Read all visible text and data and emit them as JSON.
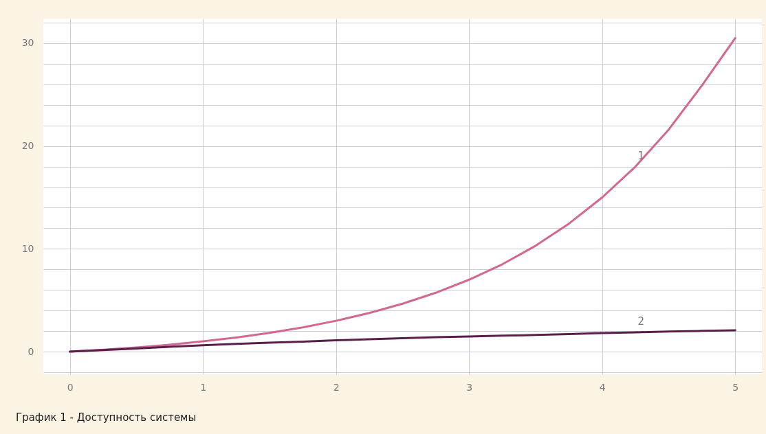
{
  "chart_data": {
    "type": "line",
    "title": "График 1 - Доступность системы",
    "x": [
      0,
      0.25,
      0.5,
      0.75,
      1,
      1.25,
      1.5,
      1.75,
      2,
      2.25,
      2.5,
      2.75,
      3,
      3.25,
      3.5,
      3.75,
      4,
      4.25,
      4.5,
      4.75,
      5
    ],
    "series": [
      {
        "name": "1",
        "color": "#d4678f",
        "values": [
          0,
          0.19,
          0.41,
          0.68,
          1,
          1.38,
          1.83,
          2.36,
          3,
          3.76,
          4.66,
          5.73,
          7,
          8.5,
          10.3,
          12.45,
          15,
          18.0,
          21.6,
          25.9,
          30.5
        ]
      },
      {
        "name": "2",
        "color": "#5a1f48",
        "values": [
          0,
          0.15,
          0.3,
          0.47,
          0.63,
          0.75,
          0.87,
          0.98,
          1.1,
          1.2,
          1.3,
          1.4,
          1.47,
          1.55,
          1.62,
          1.7,
          1.8,
          1.88,
          1.95,
          2.02,
          2.07
        ]
      }
    ],
    "xlim": [
      -0.2,
      5.2
    ],
    "xticks": [
      0,
      1,
      2,
      3,
      4,
      5
    ],
    "ylim": [
      -2.2,
      32.4
    ],
    "yticks": [
      {
        "value": -2,
        "label": null
      },
      0,
      {
        "value": 2,
        "label": null
      },
      {
        "value": 4,
        "label": null
      },
      {
        "value": 6,
        "label": null
      },
      {
        "value": 8,
        "label": null
      },
      10,
      {
        "value": 12,
        "label": null
      },
      {
        "value": 14,
        "label": null
      },
      {
        "value": 16,
        "label": null
      },
      {
        "value": 18,
        "label": null
      },
      20,
      {
        "value": 22,
        "label": null
      },
      {
        "value": 24,
        "label": null
      },
      {
        "value": 26,
        "label": null
      },
      {
        "value": 28,
        "label": null
      },
      30,
      {
        "value": 32,
        "label": null
      }
    ],
    "grid": true,
    "legend": false,
    "marker": "none",
    "line_style": "solid"
  }
}
